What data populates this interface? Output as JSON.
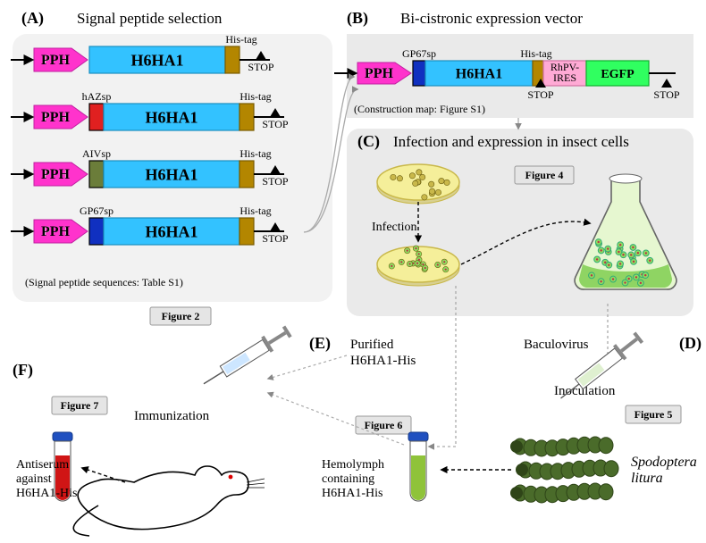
{
  "panels": {
    "A": {
      "label": "(A)",
      "title": "Signal peptide selection",
      "note": "(Signal peptide sequences: Table S1)",
      "figBadge": "Figure 2"
    },
    "B": {
      "label": "(B)",
      "title": "Bi-cistronic expression vector",
      "note": "(Construction map: Figure S1)"
    },
    "C": {
      "label": "(C)",
      "title": "Infection and expression in insect cells",
      "figBadge": "Figure 4",
      "infection": "Infection"
    },
    "D": {
      "label": "(D)",
      "figBadge": "Figure 5",
      "inoc": "Inoculation",
      "species1": "Spodoptera",
      "species2": "litura",
      "bv": "Baculovirus"
    },
    "E": {
      "label": "(E)",
      "title": "Purified",
      "title2": "H6HA1-His",
      "figBadge": "Figure 6",
      "hem1": "Hemolymph",
      "hem2": "containing",
      "hem3": "H6HA1-His"
    },
    "F": {
      "label": "(F)",
      "figBadge": "Figure 7",
      "imm": "Immunization",
      "as1": "Antiserum",
      "as2": "against",
      "as3": "H6HA1-His"
    }
  },
  "constructs": {
    "pph": "PPH",
    "ha": "H6HA1",
    "his": "His-tag",
    "stop": "STOP",
    "sp": {
      "none": "",
      "haz": "hAZsp",
      "aiv": "AIVsp",
      "gp67": "GP67sp"
    },
    "ires": "RhPV-\nIRES",
    "egfp": "EGFP"
  },
  "colors": {
    "panelBg": "#eaeaea",
    "panelBgA": "#f2f2f2",
    "pph": "#ff33cc",
    "pphStroke": "#c020a0",
    "ha": "#33c2ff",
    "haStroke": "#1a8fc0",
    "his": "#b38600",
    "hisStroke": "#7a5c00",
    "spRed": "#e02020",
    "spOlive": "#6b7d3a",
    "spBlue": "#1030c0",
    "ires": "#ffaad5",
    "iresStroke": "#d070a0",
    "egfp": "#30ff60",
    "egfpStroke": "#10b030",
    "dishFill": "#f5ef9a",
    "dishStroke": "#c9b84a",
    "cellGreen": "#8fdc60",
    "flaskFill": "#e6f7d0",
    "flaskGreen": "#7fce50",
    "tubeRed": "#d01515",
    "tubeGreen": "#8fc33a",
    "tubeCap": "#2050c0",
    "larva": "#4a6b2a",
    "larvaDark": "#2f4518",
    "syringeBlue": "#cde6ff",
    "syringeGreen": "#dff0d0",
    "mouse": "#000"
  }
}
